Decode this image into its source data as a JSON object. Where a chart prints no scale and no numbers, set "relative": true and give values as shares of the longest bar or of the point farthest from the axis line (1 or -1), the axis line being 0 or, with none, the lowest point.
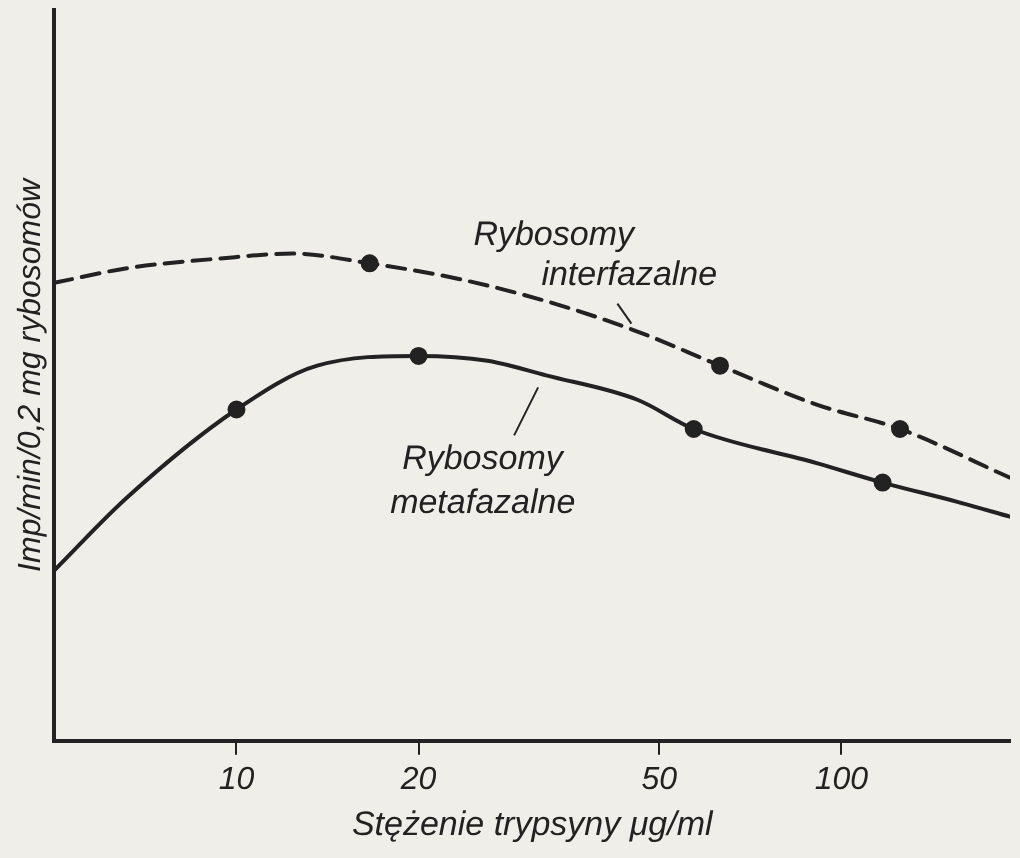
{
  "chart_data": {
    "type": "line",
    "relative": true,
    "xlabel": "Stężenie trypsyny μg/ml",
    "ylabel": "Imp/min/0,2 mg rybosomów",
    "log": "x",
    "xlim": [
      5,
      190
    ],
    "xticks": [
      10,
      20,
      50,
      100
    ],
    "grid": false,
    "marker": "none",
    "series": [
      {
        "name": "Rybosomy interfazalne",
        "color": "#222222",
        "line_style": "dashed",
        "x": [
          5,
          6.6,
          9.4,
          12.4,
          16.6,
          22.9,
          33,
          46,
          63,
          91,
          125,
          190
        ],
        "values": [
          0.94,
          0.97,
          0.99,
          1.0,
          0.98,
          0.95,
          0.9,
          0.84,
          0.77,
          0.69,
          0.64,
          0.54
        ]
      },
      {
        "name": "Rybosomy metafazalne",
        "color": "#222222",
        "line_style": "solid",
        "x": [
          5,
          6.6,
          10,
          13.6,
          20,
          26,
          32.5,
          46,
          57,
          91,
          117,
          156,
          190
        ],
        "values": [
          0.35,
          0.5,
          0.68,
          0.77,
          0.79,
          0.78,
          0.75,
          0.7,
          0.64,
          0.57,
          0.53,
          0.49,
          0.46
        ]
      },
      {
        "type": "scatter",
        "color": "#222222",
        "marker": "circle",
        "x": [
          16.6,
          63,
          125
        ],
        "values": [
          0.98,
          0.77,
          0.64
        ]
      },
      {
        "type": "scatter",
        "color": "#222222",
        "marker": "circle",
        "x": [
          10,
          20,
          57,
          117
        ],
        "values": [
          0.68,
          0.79,
          0.64,
          0.53
        ]
      }
    ]
  }
}
